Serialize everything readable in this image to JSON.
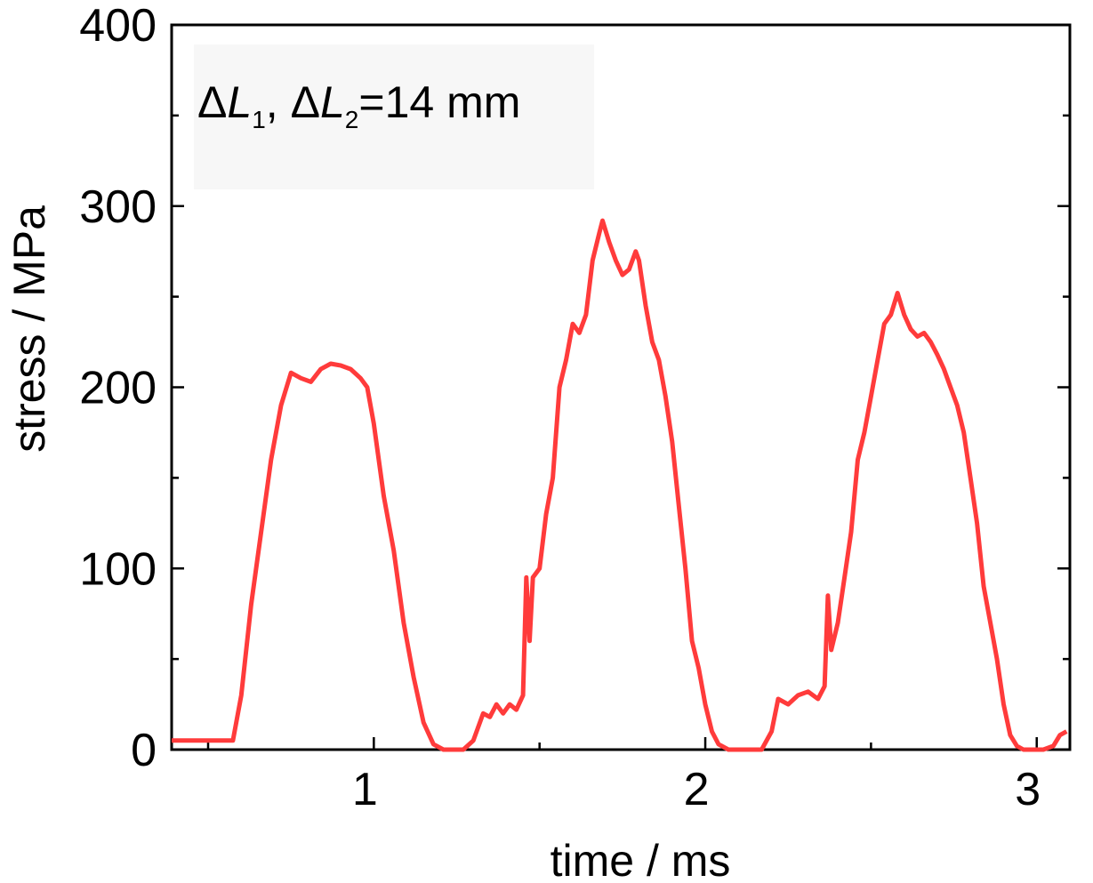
{
  "chart_data": {
    "type": "line",
    "xlabel": "time / ms",
    "ylabel": "stress / MPa",
    "annotation": [
      "Δ",
      "L",
      "1",
      ", Δ",
      "L",
      "2",
      "=14 mm"
    ],
    "xlim": [
      0.39,
      3.1
    ],
    "xticks": [
      1,
      2,
      3
    ],
    "xminorticks": [
      0.5,
      1.5,
      2.5
    ],
    "ylim": [
      0,
      400
    ],
    "yticks": [
      0,
      100,
      200,
      300,
      400
    ],
    "yminorticks": [
      50,
      150,
      250,
      350
    ],
    "x": [
      0.39,
      0.45,
      0.5,
      0.55,
      0.575,
      0.6,
      0.63,
      0.66,
      0.69,
      0.72,
      0.75,
      0.78,
      0.81,
      0.84,
      0.87,
      0.9,
      0.93,
      0.96,
      0.98,
      1.0,
      1.03,
      1.06,
      1.09,
      1.12,
      1.15,
      1.18,
      1.21,
      1.24,
      1.27,
      1.3,
      1.33,
      1.35,
      1.37,
      1.39,
      1.41,
      1.43,
      1.45,
      1.46,
      1.47,
      1.48,
      1.5,
      1.52,
      1.54,
      1.56,
      1.58,
      1.6,
      1.62,
      1.64,
      1.66,
      1.68,
      1.69,
      1.71,
      1.73,
      1.75,
      1.77,
      1.79,
      1.8,
      1.82,
      1.84,
      1.86,
      1.88,
      1.9,
      1.92,
      1.94,
      1.96,
      1.98,
      2.0,
      2.02,
      2.04,
      2.07,
      2.1,
      2.14,
      2.17,
      2.2,
      2.22,
      2.25,
      2.28,
      2.31,
      2.34,
      2.36,
      2.37,
      2.38,
      2.4,
      2.42,
      2.44,
      2.46,
      2.48,
      2.5,
      2.52,
      2.54,
      2.56,
      2.58,
      2.6,
      2.62,
      2.64,
      2.66,
      2.68,
      2.7,
      2.72,
      2.74,
      2.76,
      2.78,
      2.8,
      2.82,
      2.84,
      2.86,
      2.88,
      2.9,
      2.92,
      2.94,
      2.96,
      2.99,
      3.02,
      3.05,
      3.07,
      3.09
    ],
    "series": [
      {
        "color": "#ff3b3b",
        "values": [
          5,
          5,
          5,
          5,
          5,
          30,
          80,
          120,
          160,
          190,
          208,
          205,
          203,
          210,
          213,
          212,
          210,
          205,
          200,
          180,
          140,
          110,
          70,
          40,
          15,
          3,
          0,
          0,
          0,
          5,
          20,
          18,
          25,
          20,
          25,
          22,
          30,
          95,
          60,
          95,
          100,
          130,
          150,
          200,
          215,
          235,
          230,
          240,
          270,
          285,
          292,
          280,
          270,
          262,
          265,
          275,
          270,
          245,
          225,
          215,
          195,
          170,
          135,
          100,
          60,
          45,
          25,
          10,
          3,
          0,
          0,
          0,
          0,
          10,
          28,
          25,
          30,
          32,
          28,
          35,
          85,
          55,
          70,
          95,
          120,
          160,
          175,
          195,
          215,
          235,
          240,
          252,
          240,
          232,
          228,
          230,
          225,
          218,
          210,
          200,
          190,
          175,
          150,
          125,
          90,
          70,
          50,
          25,
          8,
          2,
          0,
          0,
          0,
          2,
          8,
          10
        ]
      }
    ]
  }
}
